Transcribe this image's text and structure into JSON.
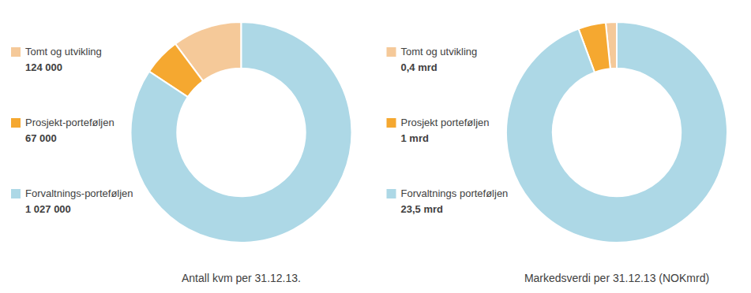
{
  "chart_data": [
    {
      "type": "pie",
      "title": "Antall kvm per 31.12.13.",
      "categories": [
        "Tomt og utvikling",
        "Prosjekt-porteføljen",
        "Forvaltnings-porteføljen"
      ],
      "values": [
        124000,
        67000,
        1027000
      ],
      "value_labels": [
        "124 000",
        "67 000",
        "1 027 000"
      ],
      "colors": [
        "#f5c999",
        "#f5a830",
        "#add8e6"
      ],
      "legend": "left"
    },
    {
      "type": "pie",
      "title": "Markedsverdi per 31.12.13 (NOKmrd)",
      "categories": [
        "Tomt og utvikling",
        "Prosjekt porteføljen",
        "Forvaltnings porteføljen"
      ],
      "values": [
        0.4,
        1.0,
        23.5
      ],
      "value_labels": [
        "0,4 mrd",
        "1 mrd",
        "23,5 mrd"
      ],
      "colors": [
        "#f5c999",
        "#f5a830",
        "#add8e6"
      ],
      "legend": "left"
    }
  ]
}
